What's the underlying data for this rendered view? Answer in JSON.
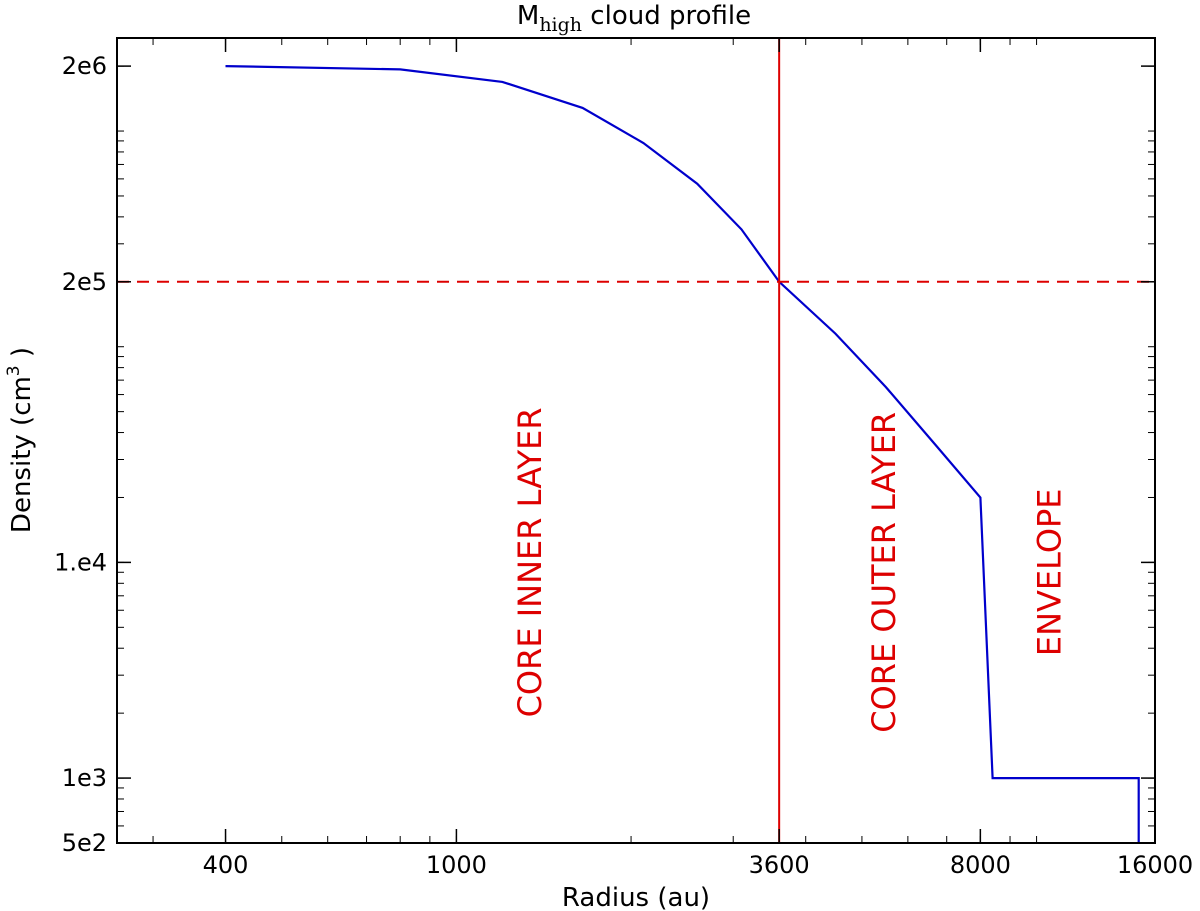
{
  "chart_data": {
    "type": "line",
    "title": {
      "prefix": "M",
      "subscript": "high",
      "suffix": " cloud profile"
    },
    "xlabel": "Radius (au)",
    "ylabel": {
      "main": "Density (cm",
      "superscript": "3",
      "close": " )"
    },
    "xscale": "log",
    "yscale": "log",
    "xlim": [
      260,
      16000
    ],
    "ylim": [
      500,
      2700000
    ],
    "xticks": [
      {
        "value": 400,
        "label": "400"
      },
      {
        "value": 1000,
        "label": "1000"
      },
      {
        "value": 3600,
        "label": "3600"
      },
      {
        "value": 8000,
        "label": "8000"
      },
      {
        "value": 16000,
        "label": "16000"
      }
    ],
    "yticks": [
      {
        "value": 500,
        "label": "5e2"
      },
      {
        "value": 1000,
        "label": "1e3"
      },
      {
        "value": 10000,
        "label": "1.e4"
      },
      {
        "value": 200000,
        "label": "2e5"
      },
      {
        "value": 2000000,
        "label": "2e6"
      }
    ],
    "series": [
      {
        "color": "#0000cc",
        "x": [
          400,
          800,
          1200,
          1650,
          2100,
          2600,
          3100,
          3600,
          4500,
          5500,
          6700,
          8000,
          8400,
          15000,
          15000
        ],
        "y": [
          2000000,
          1930000,
          1690000,
          1280000,
          880000,
          570000,
          350000,
          200000,
          115000,
          65000,
          35000,
          20000,
          1000,
          1000,
          500
        ]
      }
    ],
    "reference_lines": [
      {
        "orientation": "vertical",
        "value": 3600,
        "color": "#dd0000",
        "style": "solid"
      },
      {
        "orientation": "horizontal",
        "value": 200000,
        "color": "#dd0000",
        "style": "dashed"
      }
    ],
    "annotations": [
      {
        "text": "CORE INNER LAYER",
        "x": 1400,
        "y": 10000,
        "color": "#dd0000",
        "rotation": -90
      },
      {
        "text": "CORE OUTER LAYER",
        "x": 5700,
        "y": 9000,
        "color": "#dd0000",
        "rotation": -90
      },
      {
        "text": "ENVELOPE",
        "x": 11000,
        "y": 9000,
        "color": "#dd0000",
        "rotation": -90
      }
    ],
    "grid": false,
    "legend": "none"
  }
}
